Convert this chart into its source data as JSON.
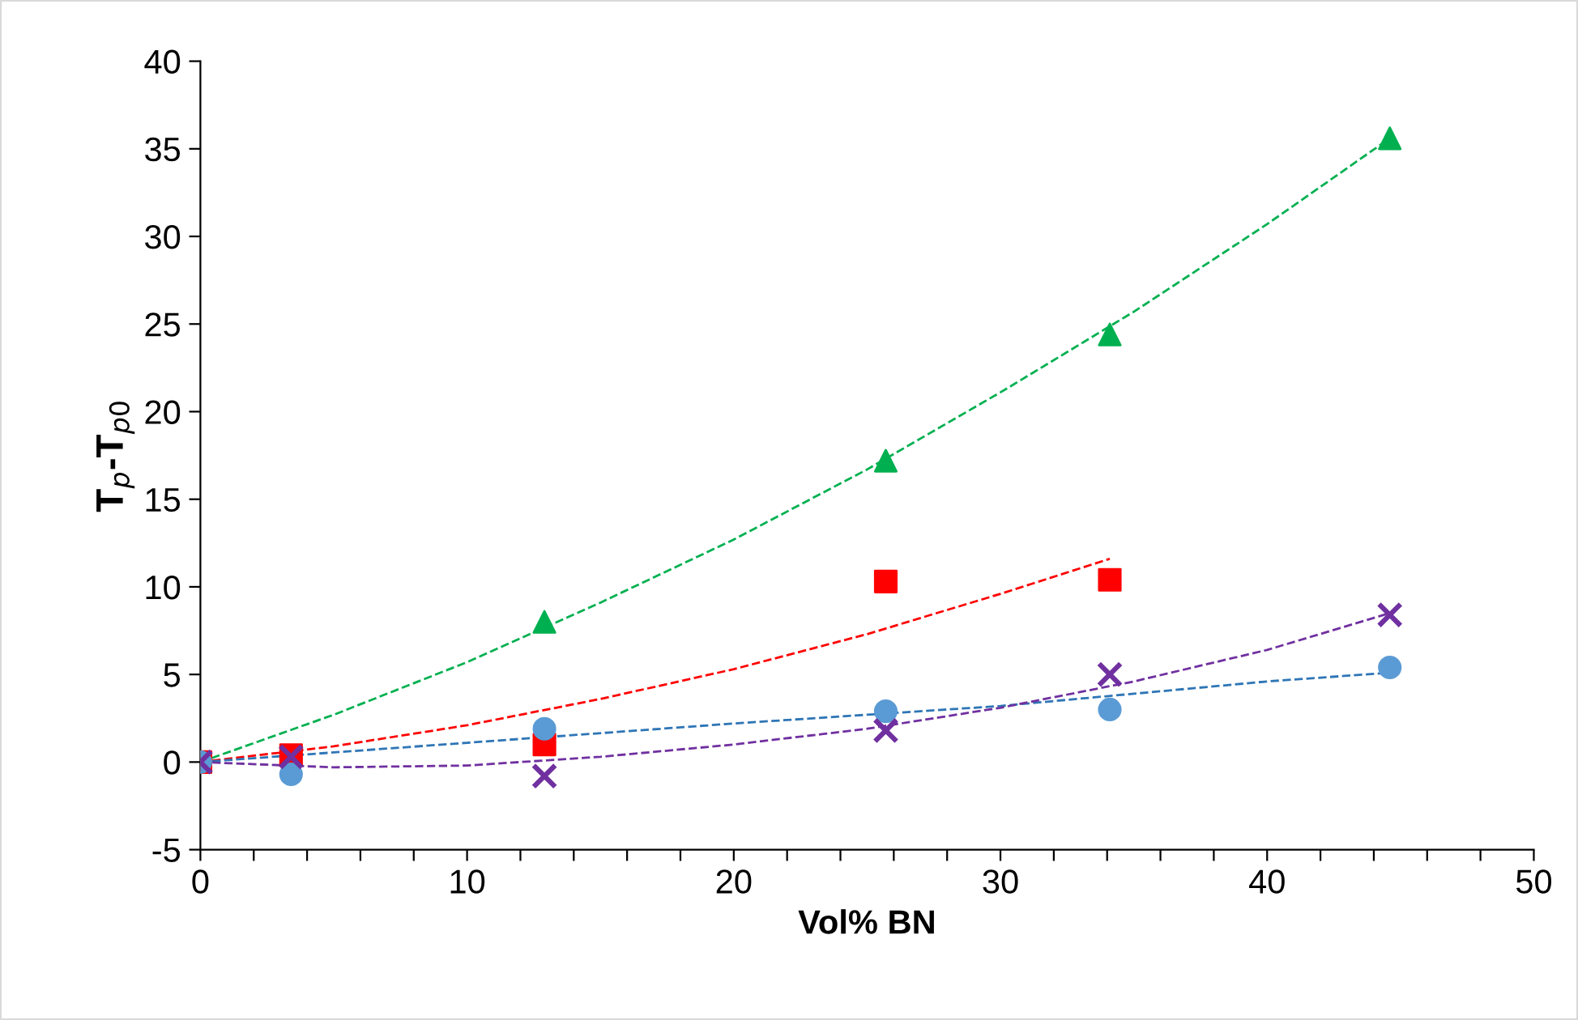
{
  "chart_data": {
    "type": "scatter",
    "xlabel": "Vol% BN",
    "ylabel": "T$_{p}$-T$_{p0}$",
    "xlim": [
      0,
      50
    ],
    "ylim": [
      -5,
      40
    ],
    "xticks": [
      0,
      {
        "value": 2,
        "label": null
      },
      {
        "value": 4,
        "label": null
      },
      {
        "value": 6,
        "label": null
      },
      {
        "value": 8,
        "label": null
      },
      10,
      {
        "value": 12,
        "label": null
      },
      {
        "value": 14,
        "label": null
      },
      {
        "value": 16,
        "label": null
      },
      {
        "value": 18,
        "label": null
      },
      20,
      {
        "value": 22,
        "label": null
      },
      {
        "value": 24,
        "label": null
      },
      {
        "value": 26,
        "label": null
      },
      {
        "value": 28,
        "label": null
      },
      30,
      {
        "value": 32,
        "label": null
      },
      {
        "value": 34,
        "label": null
      },
      {
        "value": 36,
        "label": null
      },
      {
        "value": 38,
        "label": null
      },
      40,
      {
        "value": 42,
        "label": null
      },
      {
        "value": 44,
        "label": null
      },
      {
        "value": 46,
        "label": null
      },
      {
        "value": 48,
        "label": null
      },
      50
    ],
    "yticks": [
      -5,
      0,
      5,
      10,
      15,
      20,
      25,
      30,
      35,
      40
    ],
    "grid": false,
    "legend": false,
    "series": [
      {
        "type": "line",
        "line_style": "dashed",
        "marker": "none",
        "color": "#00b050",
        "x": [
          0,
          5,
          10,
          15,
          20,
          25,
          30,
          35,
          40,
          44.6
        ],
        "values": [
          0,
          2.7,
          5.7,
          9.1,
          12.7,
          16.7,
          21.1,
          25.7,
          30.7,
          35.6
        ]
      },
      {
        "type": "line",
        "line_style": "dashed",
        "marker": "none",
        "color": "#ff0000",
        "x": [
          0,
          5,
          10,
          15,
          20,
          25,
          30,
          34.1
        ],
        "values": [
          0,
          0.9,
          2.1,
          3.6,
          5.3,
          7.3,
          9.6,
          11.6
        ]
      },
      {
        "type": "line",
        "line_style": "dashed",
        "marker": "none",
        "color": "#2e75b6",
        "x": [
          0,
          10,
          20,
          30,
          40,
          44.6
        ],
        "values": [
          0,
          1.1,
          2.2,
          3.2,
          4.6,
          5.1
        ]
      },
      {
        "type": "line",
        "line_style": "dashed",
        "marker": "none",
        "color": "#7030a0",
        "x": [
          0,
          5,
          10,
          15,
          20,
          25,
          30,
          35,
          40,
          44.6
        ],
        "values": [
          0,
          -0.3,
          -0.2,
          0.3,
          1.0,
          1.9,
          3.1,
          4.6,
          6.4,
          8.5
        ]
      },
      {
        "marker": "triangle",
        "color": "#00b050",
        "x": [
          0,
          3.4,
          12.9,
          25.7,
          34.1,
          44.6
        ],
        "values": [
          0,
          null,
          8.0,
          17.2,
          24.4,
          35.6
        ]
      },
      {
        "marker": "square",
        "color": "#ff0000",
        "x": [
          0,
          3.4,
          12.9,
          25.7,
          34.1
        ],
        "values": [
          0,
          0.4,
          1.0,
          10.3,
          10.4
        ]
      },
      {
        "marker": "circle",
        "color": "#5b9bd5",
        "x": [
          0,
          3.4,
          12.9,
          25.7,
          34.1,
          44.6
        ],
        "values": [
          0,
          -0.7,
          1.9,
          2.9,
          3.0,
          5.4
        ]
      },
      {
        "marker": "cross",
        "color": "#7030a0",
        "x": [
          0,
          3.4,
          12.9,
          25.7,
          34.1,
          44.6
        ],
        "values": [
          0,
          0.3,
          -0.8,
          1.8,
          5.0,
          8.4
        ]
      }
    ]
  }
}
